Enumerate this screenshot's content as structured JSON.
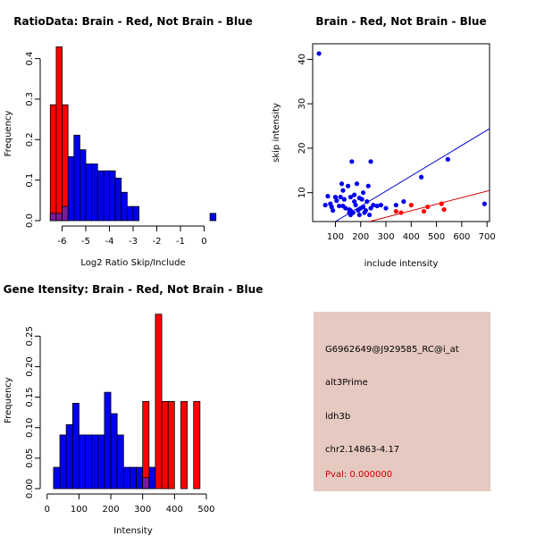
{
  "colors": {
    "red": "#ff0000",
    "blue": "#0000ee",
    "overlap": "#7a1a9a",
    "red_line": "#cc0000",
    "blue_line": "#0000cc",
    "info_bg": "#e6c9c1",
    "pval": "#cc0000"
  },
  "chart_data": [
    {
      "type": "bar",
      "title": "RatioData: Brain - Red, Not Brain - Blue",
      "xlabel": "Log2 Ratio Skip/Include",
      "ylabel": "Frequency",
      "xlim": [
        -6.7,
        0.7
      ],
      "ylim": [
        0,
        0.43
      ],
      "xticks": [
        -6,
        -5,
        -4,
        -3,
        -2,
        -1,
        0
      ],
      "xtick_labels": [
        "-6",
        "-5",
        "-4",
        "-3",
        "-2",
        "-1",
        "0"
      ],
      "yticks": [
        0,
        0.1,
        0.2,
        0.3,
        0.4
      ],
      "ytick_labels": [
        "0.0",
        "0.1",
        "0.2",
        "0.3",
        "0.4"
      ],
      "series": [
        {
          "name": "Not Brain",
          "color": "blue",
          "bins": [
            {
              "x0": -6.5,
              "x1": -6.25,
              "value": 0.018
            },
            {
              "x0": -6.25,
              "x1": -6.0,
              "value": 0.018
            },
            {
              "x0": -6.0,
              "x1": -5.75,
              "value": 0.035
            },
            {
              "x0": -5.75,
              "x1": -5.5,
              "value": 0.158
            },
            {
              "x0": -5.5,
              "x1": -5.25,
              "value": 0.211
            },
            {
              "x0": -5.25,
              "x1": -5.0,
              "value": 0.175
            },
            {
              "x0": -5.0,
              "x1": -4.75,
              "value": 0.14
            },
            {
              "x0": -4.75,
              "x1": -4.5,
              "value": 0.14
            },
            {
              "x0": -4.5,
              "x1": -4.25,
              "value": 0.123
            },
            {
              "x0": -4.25,
              "x1": -4.0,
              "value": 0.123
            },
            {
              "x0": -4.0,
              "x1": -3.75,
              "value": 0.123
            },
            {
              "x0": -3.75,
              "x1": -3.5,
              "value": 0.105
            },
            {
              "x0": -3.5,
              "x1": -3.25,
              "value": 0.07
            },
            {
              "x0": -3.25,
              "x1": -3.0,
              "value": 0.035
            },
            {
              "x0": -3.0,
              "x1": -2.75,
              "value": 0.035
            },
            {
              "x0": 0.25,
              "x1": 0.5,
              "value": 0.018
            }
          ]
        },
        {
          "name": "Brain",
          "color": "red",
          "bins": [
            {
              "x0": -6.5,
              "x1": -6.25,
              "value": 0.286
            },
            {
              "x0": -6.25,
              "x1": -6.0,
              "value": 0.429
            },
            {
              "x0": -6.0,
              "x1": -5.75,
              "value": 0.286
            }
          ]
        }
      ]
    },
    {
      "type": "scatter",
      "title": "Brain - Red, Not Brain - Blue",
      "xlabel": "include intensity",
      "ylabel": "skip intensity",
      "xlim": [
        10,
        710
      ],
      "ylim": [
        3.5,
        43.5
      ],
      "xticks": [
        100,
        200,
        300,
        400,
        500,
        600,
        700
      ],
      "xtick_labels": [
        "100",
        "200",
        "300",
        "400",
        "500",
        "600",
        "700"
      ],
      "yticks": [
        10,
        20,
        30,
        40
      ],
      "ytick_labels": [
        "10",
        "20",
        "30",
        "40"
      ],
      "series": [
        {
          "name": "Not Brain",
          "color": "blue",
          "x": [
            35,
            60,
            70,
            80,
            85,
            90,
            100,
            105,
            115,
            120,
            125,
            130,
            135,
            140,
            150,
            155,
            160,
            160,
            165,
            170,
            175,
            180,
            185,
            190,
            195,
            200,
            205,
            210,
            215,
            220,
            225,
            230,
            235,
            240,
            250,
            265,
            280,
            300,
            340,
            370,
            440,
            545,
            690,
            160,
            240,
            130,
            175,
            195,
            155,
            210
          ],
          "y": [
            41.3,
            7.2,
            9.2,
            7.5,
            6.8,
            6.0,
            9.0,
            8.2,
            7.0,
            9.0,
            12.0,
            7.0,
            8.5,
            6.5,
            11.5,
            5.5,
            5.0,
            9.0,
            17.0,
            5.5,
            8.0,
            7.2,
            12.0,
            6.0,
            5.0,
            6.5,
            8.5,
            6.8,
            5.5,
            6.0,
            8.0,
            11.5,
            5.0,
            6.5,
            7.2,
            7.0,
            7.2,
            6.5,
            7.2,
            8.0,
            13.5,
            17.5,
            7.5,
            6.0,
            17.0,
            10.5,
            9.5,
            8.8,
            6.2,
            10.0
          ]
        },
        {
          "name": "Brain",
          "color": "red",
          "x": [
            340,
            360,
            400,
            450,
            465,
            520,
            530
          ],
          "y": [
            5.8,
            5.5,
            7.2,
            5.8,
            6.8,
            7.5,
            6.2
          ]
        }
      ],
      "fit_lines": [
        {
          "name": "Not Brain fit",
          "color": "blue_line",
          "points": [
            [
              100,
              3.5
            ],
            [
              710,
              24.4
            ]
          ]
        },
        {
          "name": "Brain fit",
          "color": "red_line",
          "points": [
            [
              235,
              3.5
            ],
            [
              710,
              10.5
            ]
          ]
        }
      ]
    },
    {
      "type": "bar",
      "title": "Gene Itensity: Brain - Red, Not Brain - Blue",
      "xlabel": "Intensity",
      "ylabel": "Frequency",
      "xlim": [
        -5,
        545
      ],
      "ylim": [
        0,
        0.29
      ],
      "xticks": [
        0,
        100,
        200,
        300,
        400,
        500
      ],
      "xtick_labels": [
        "0",
        "100",
        "200",
        "300",
        "400",
        "500"
      ],
      "yticks": [
        0,
        0.05,
        0.1,
        0.15,
        0.2,
        0.25
      ],
      "ytick_labels": [
        "0.00",
        "0.05",
        "0.10",
        "0.15",
        "0.20",
        "0.25"
      ],
      "series": [
        {
          "name": "Not Brain",
          "color": "blue",
          "bins": [
            {
              "x0": 20,
              "x1": 40,
              "value": 0.035
            },
            {
              "x0": 40,
              "x1": 60,
              "value": 0.088
            },
            {
              "x0": 60,
              "x1": 80,
              "value": 0.105
            },
            {
              "x0": 80,
              "x1": 100,
              "value": 0.14
            },
            {
              "x0": 100,
              "x1": 120,
              "value": 0.088
            },
            {
              "x0": 120,
              "x1": 140,
              "value": 0.088
            },
            {
              "x0": 140,
              "x1": 160,
              "value": 0.088
            },
            {
              "x0": 160,
              "x1": 180,
              "value": 0.088
            },
            {
              "x0": 180,
              "x1": 200,
              "value": 0.158
            },
            {
              "x0": 200,
              "x1": 220,
              "value": 0.123
            },
            {
              "x0": 220,
              "x1": 240,
              "value": 0.088
            },
            {
              "x0": 240,
              "x1": 260,
              "value": 0.035
            },
            {
              "x0": 260,
              "x1": 280,
              "value": 0.035
            },
            {
              "x0": 280,
              "x1": 300,
              "value": 0.035
            },
            {
              "x0": 300,
              "x1": 320,
              "value": 0.018
            },
            {
              "x0": 320,
              "x1": 340,
              "value": 0.035
            }
          ]
        },
        {
          "name": "Brain",
          "color": "red",
          "bins": [
            {
              "x0": 300,
              "x1": 320,
              "value": 0.143
            },
            {
              "x0": 340,
              "x1": 360,
              "value": 0.286
            },
            {
              "x0": 360,
              "x1": 380,
              "value": 0.143
            },
            {
              "x0": 380,
              "x1": 400,
              "value": 0.143
            },
            {
              "x0": 420,
              "x1": 440,
              "value": 0.143
            },
            {
              "x0": 460,
              "x1": 480,
              "value": 0.143
            }
          ]
        }
      ]
    }
  ],
  "info": {
    "probe_id": "G6962649@J929585_RC@i_at",
    "event_type": "alt3Prime",
    "gene": "ldh3b",
    "location": "chr2.14863-4.17",
    "pval": "Pval: 0.000000"
  }
}
